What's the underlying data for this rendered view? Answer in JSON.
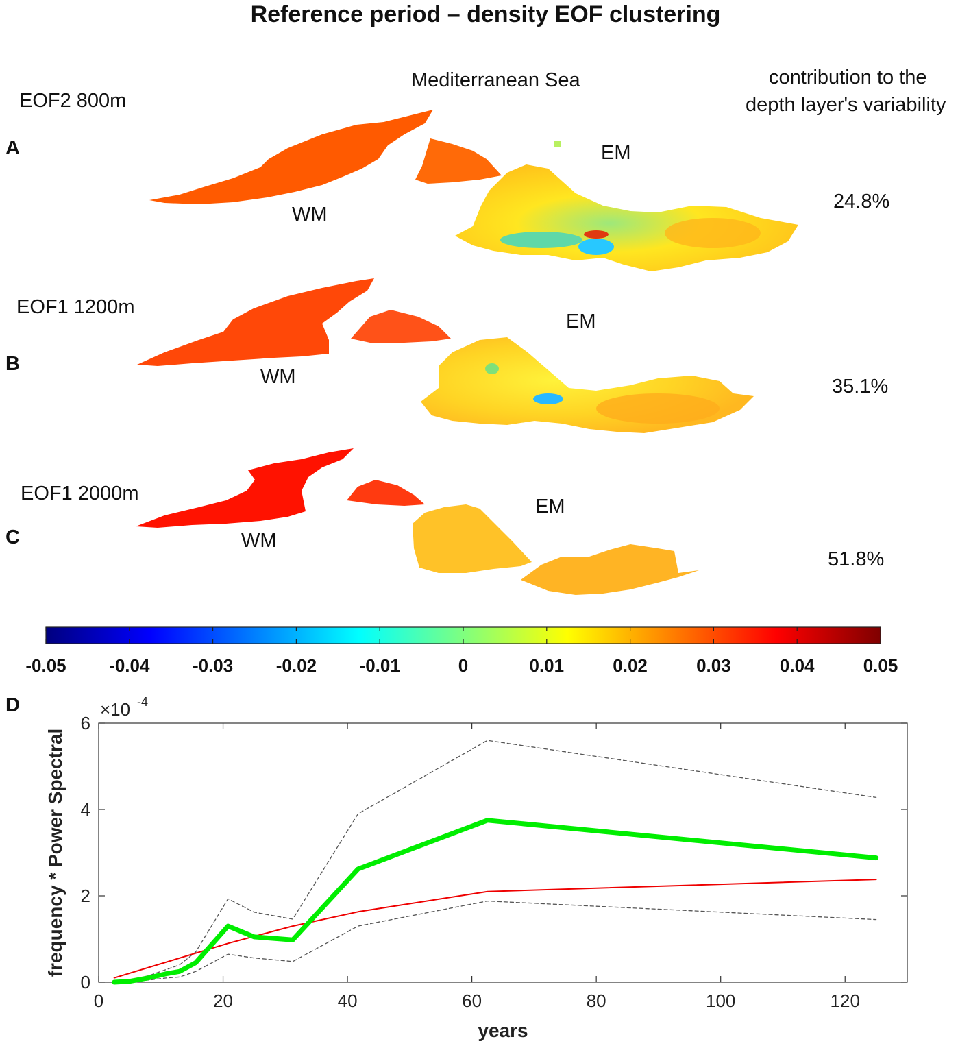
{
  "figure": {
    "title": "Reference period – density EOF clustering",
    "region_label": "Mediterranean Sea",
    "contribution_header": [
      "contribution to the",
      "depth layer's variability"
    ]
  },
  "panels": [
    {
      "letter": "A",
      "eof_label": "EOF2 800m",
      "west_label": "WM",
      "east_label": "EM",
      "contribution": "24.8%"
    },
    {
      "letter": "B",
      "eof_label": "EOF1 1200m",
      "west_label": "WM",
      "east_label": "EM",
      "contribution": "35.1%"
    },
    {
      "letter": "C",
      "eof_label": "EOF1 2000m",
      "west_label": "WM",
      "east_label": "EM",
      "contribution": "51.8%"
    }
  ],
  "colorbar": {
    "ticks": [
      "-0.05",
      "-0.04",
      "-0.03",
      "-0.02",
      "-0.01",
      "0",
      "0.01",
      "0.02",
      "0.03",
      "0.04",
      "0.05"
    ],
    "range": [
      -0.05,
      0.05
    ],
    "colormap": "jet",
    "colors": [
      "#00007f",
      "#0000ff",
      "#007fff",
      "#00ffff",
      "#7fff7f",
      "#ffff00",
      "#ff7f00",
      "#ff0000",
      "#7f0000"
    ]
  },
  "chart_data": {
    "panel_letter": "D",
    "type": "line",
    "xlabel": "years",
    "ylabel": "frequency * Power Spectral",
    "y_exponent_label": "×10",
    "y_exponent_power": "-4",
    "xlim": [
      0,
      130
    ],
    "ylim": [
      0,
      6
    ],
    "xticks": [
      "0",
      "20",
      "40",
      "60",
      "80",
      "100",
      "120"
    ],
    "yticks": [
      "0",
      "2",
      "4",
      "6"
    ],
    "series": [
      {
        "name": "spectrum",
        "color": "#00ee00",
        "style": "solid-thick",
        "x": [
          2.5,
          5,
          8,
          11,
          13,
          15.6,
          20.8,
          25,
          31.2,
          41.7,
          62.5,
          125
        ],
        "y": [
          0.0,
          0.02,
          0.1,
          0.2,
          0.25,
          0.45,
          1.3,
          1.05,
          0.98,
          2.62,
          3.75,
          2.88
        ]
      },
      {
        "name": "red-noise",
        "color": "#ee0000",
        "style": "solid-thin",
        "x": [
          2.5,
          20.8,
          31.2,
          41.7,
          62.5,
          125
        ],
        "y": [
          0.1,
          0.9,
          1.3,
          1.63,
          2.1,
          2.38
        ]
      },
      {
        "name": "upper-confidence",
        "color": "#555555",
        "style": "dashed",
        "x": [
          2.5,
          5,
          8,
          11,
          13,
          15.6,
          20.8,
          25,
          31.2,
          41.7,
          62.5,
          125
        ],
        "y": [
          0.02,
          0.05,
          0.15,
          0.3,
          0.4,
          0.7,
          1.93,
          1.62,
          1.46,
          3.9,
          5.6,
          4.28
        ]
      },
      {
        "name": "lower-confidence",
        "color": "#555555",
        "style": "dashed",
        "x": [
          2.5,
          5,
          8,
          11,
          13,
          15.6,
          20.8,
          25,
          31.2,
          41.7,
          62.5,
          125
        ],
        "y": [
          0.0,
          0.01,
          0.05,
          0.1,
          0.12,
          0.25,
          0.65,
          0.56,
          0.48,
          1.3,
          1.88,
          1.45
        ]
      }
    ]
  }
}
